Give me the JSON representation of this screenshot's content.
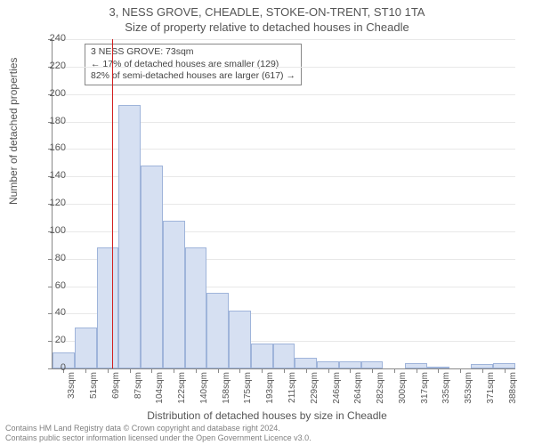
{
  "titles": {
    "line1": "3, NESS GROVE, CHEADLE, STOKE-ON-TRENT, ST10 1TA",
    "line2": "Size of property relative to detached houses in Cheadle"
  },
  "ylabel": "Number of detached properties",
  "xlabel": "Distribution of detached houses by size in Cheadle",
  "info_box": {
    "line1": "3 NESS GROVE: 73sqm",
    "line2": "← 17% of detached houses are smaller (129)",
    "line3": "82% of semi-detached houses are larger (617) →"
  },
  "footer": {
    "line1": "Contains HM Land Registry data © Crown copyright and database right 2024.",
    "line2": "Contains public sector information licensed under the Open Government Licence v3.0."
  },
  "chart": {
    "type": "histogram",
    "ylim": [
      0,
      240
    ],
    "ytick_step": 20,
    "bar_fill": "#d6e0f2",
    "bar_stroke": "#9fb4da",
    "grid_color": "#e8e8e8",
    "axis_color": "#888888",
    "marker_color": "#d21f1f",
    "marker_value": 73,
    "x_start": 25,
    "x_bin": 17.75,
    "n_bins": 21,
    "xtick_labels": [
      "33sqm",
      "51sqm",
      "69sqm",
      "87sqm",
      "104sqm",
      "122sqm",
      "140sqm",
      "158sqm",
      "175sqm",
      "193sqm",
      "211sqm",
      "229sqm",
      "246sqm",
      "264sqm",
      "282sqm",
      "300sqm",
      "317sqm",
      "335sqm",
      "353sqm",
      "371sqm",
      "388sqm"
    ],
    "values": [
      12,
      30,
      88,
      192,
      148,
      108,
      88,
      55,
      42,
      18,
      18,
      8,
      5,
      5,
      5,
      0,
      4,
      1,
      0,
      3,
      4
    ],
    "title_fontsize": 13,
    "label_fontsize": 12,
    "tick_fontsize": 11
  }
}
